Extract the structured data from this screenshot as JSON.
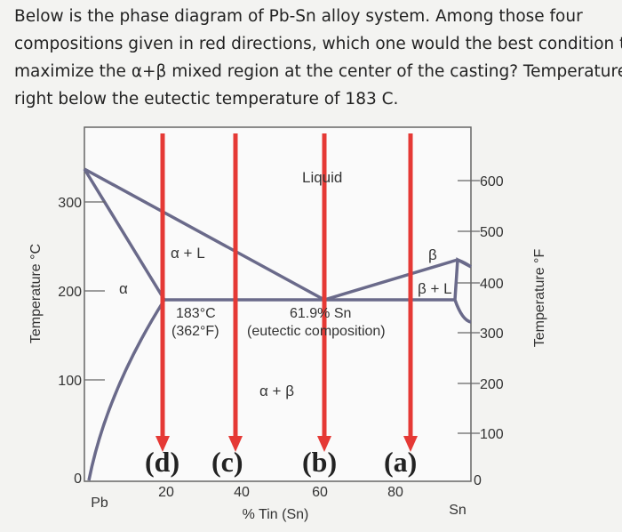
{
  "question": {
    "lines": [
      "Below is the phase diagram of Pb-Sn alloy system. Among those four",
      "compositions given in red directions, which one would the best condition to",
      "maximize the α+β mixed region at the center of the casting? Temperature is",
      "right below the eutectic temperature of 183 C."
    ]
  },
  "diagram": {
    "left_axis": {
      "label": "Temperature °C",
      "ticks": [
        "300",
        "200",
        "100",
        "0"
      ]
    },
    "right_axis": {
      "label": "Temperature °F",
      "ticks": [
        "600",
        "500",
        "400",
        "300",
        "200",
        "100",
        "0"
      ]
    },
    "bottom_axis": {
      "label": "% Tin (Sn)",
      "ticks": [
        "20",
        "40",
        "60",
        "80"
      ],
      "left_end": "Pb",
      "right_end": "Sn"
    },
    "regions": [
      "Liquid",
      "α + L",
      "α",
      "α + β",
      "β",
      "β + L"
    ],
    "eutectic": {
      "temp_c": "183°C",
      "temp_f": "(362°F)",
      "composition": "61.9% Sn",
      "note": "(eutectic composition)"
    },
    "arrows": [
      "(d)",
      "(c)",
      "(b)",
      "(a)"
    ]
  }
}
